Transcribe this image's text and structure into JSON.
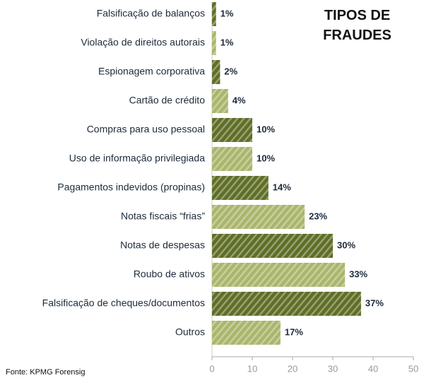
{
  "chart_data": {
    "type": "bar",
    "orientation": "horizontal",
    "title": "TIPOS DE FRAUDES",
    "source": "Fonte: KPMG Forensig",
    "categories": [
      "Falsificação de balanços",
      "Violação de direitos autorais",
      "Espionagem corporativa",
      "Cartão de crédito",
      "Compras para uso pessoal",
      "Uso de informação privilegiada",
      "Pagamentos indevidos (propinas)",
      "Notas fiscais “frias”",
      "Notas de despesas",
      "Roubo de ativos",
      "Falsificação de cheques/documentos",
      "Outros"
    ],
    "values": [
      1,
      1,
      2,
      4,
      10,
      10,
      14,
      23,
      30,
      33,
      37,
      17
    ],
    "value_labels": [
      "1%",
      "1%",
      "2%",
      "4%",
      "10%",
      "10%",
      "14%",
      "23%",
      "30%",
      "33%",
      "37%",
      "17%"
    ],
    "colors": [
      "#5f6e26",
      "#aab66c",
      "#5f6e26",
      "#aab66c",
      "#5f6e26",
      "#aab66c",
      "#5f6e26",
      "#aab66c",
      "#5f6e26",
      "#aab66c",
      "#5f6e26",
      "#aab66c"
    ],
    "xlim": [
      0,
      50
    ],
    "xticks": [
      0,
      10,
      20,
      30,
      40,
      50
    ],
    "grid": false
  }
}
